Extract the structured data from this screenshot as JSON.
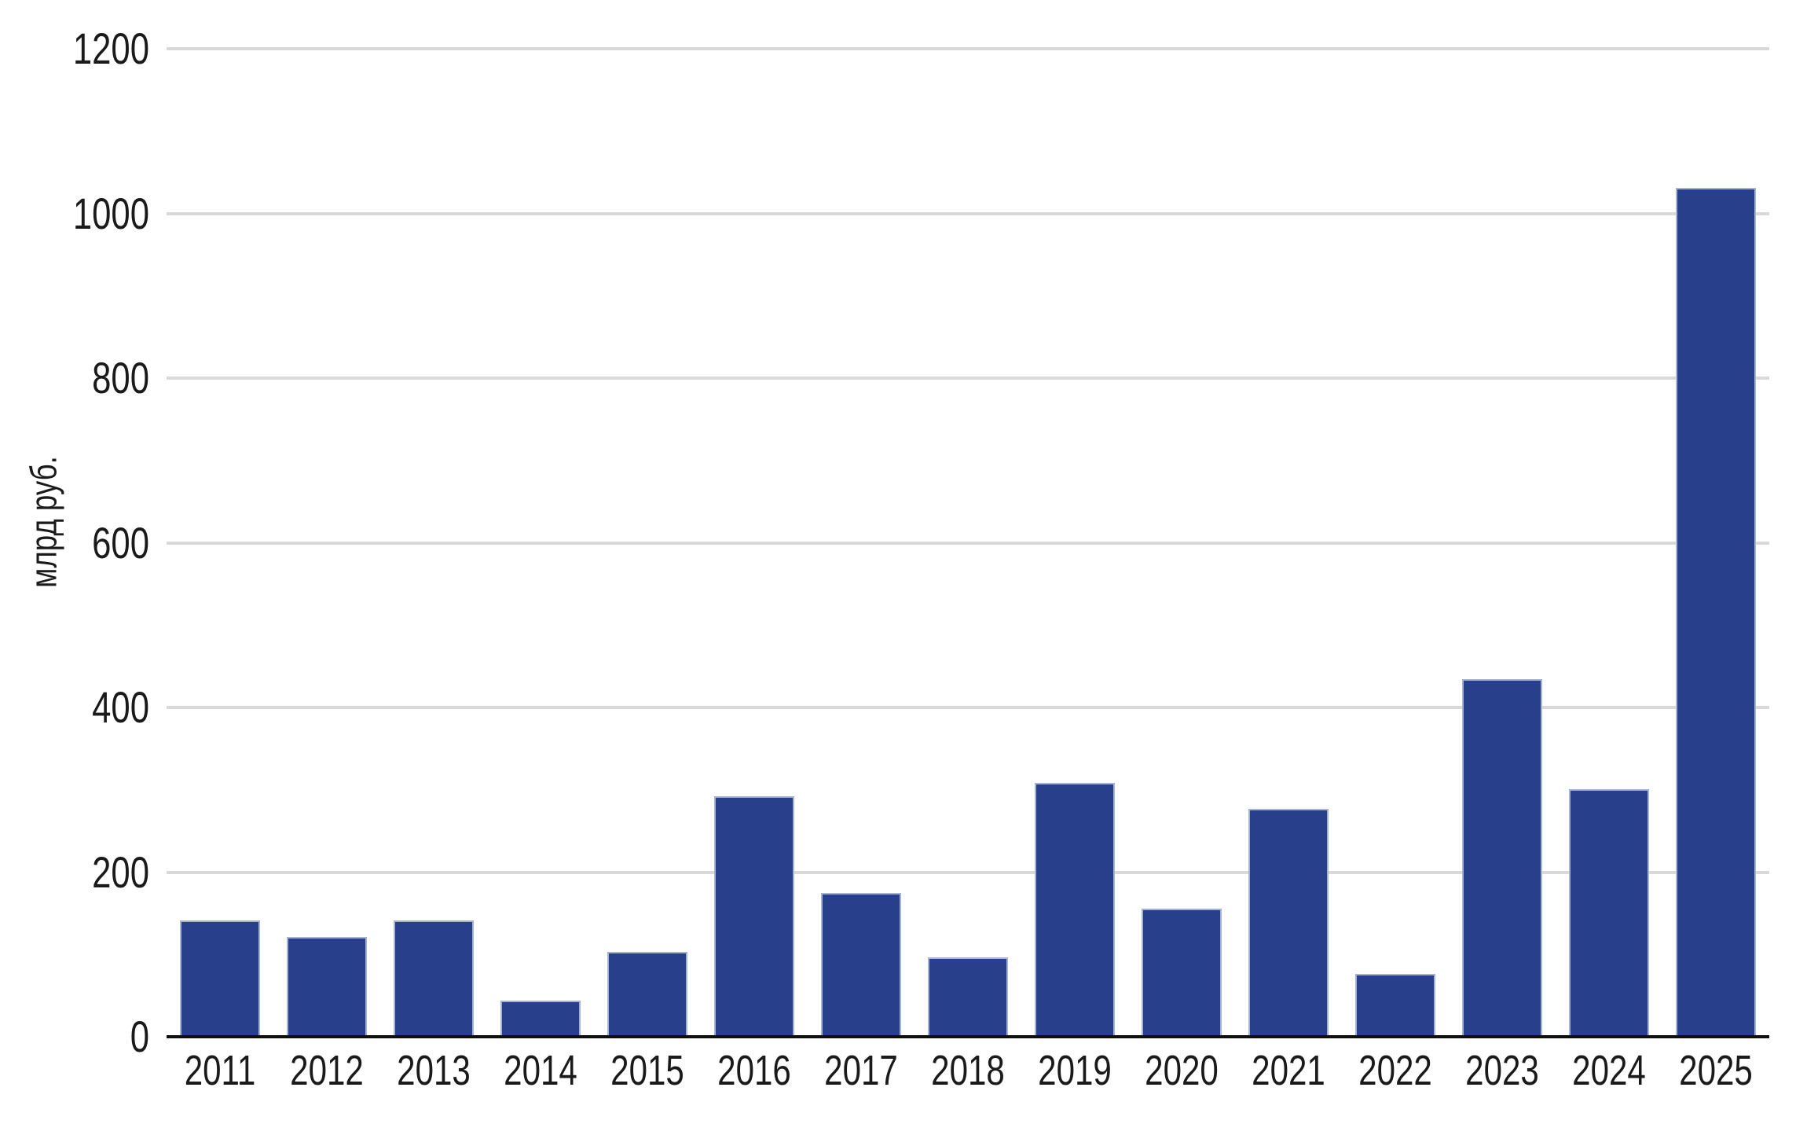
{
  "chart_data": {
    "type": "bar",
    "title": "",
    "categories": [
      "2011",
      "2012",
      "2013",
      "2014",
      "2015",
      "2016",
      "2017",
      "2018",
      "2019",
      "2020",
      "2021",
      "2022",
      "2023",
      "2024",
      "2025"
    ],
    "values": [
      141,
      121,
      141,
      44,
      103,
      292,
      175,
      96,
      308,
      156,
      277,
      76,
      434,
      301,
      1031
    ],
    "xlabel": "",
    "ylabel": "млрд руб.",
    "ylim": [
      0,
      1200
    ],
    "yticks": [
      0,
      200,
      400,
      600,
      800,
      1000,
      1200
    ],
    "grid": "horizontal",
    "legend": "none",
    "bar_color": "#283f8c",
    "bar_edge_color": "#a8b2d1",
    "gridline_color": "#d9d9d9",
    "axis_line_color": "#0f0f0f",
    "text_color": "#1a1a1a"
  }
}
